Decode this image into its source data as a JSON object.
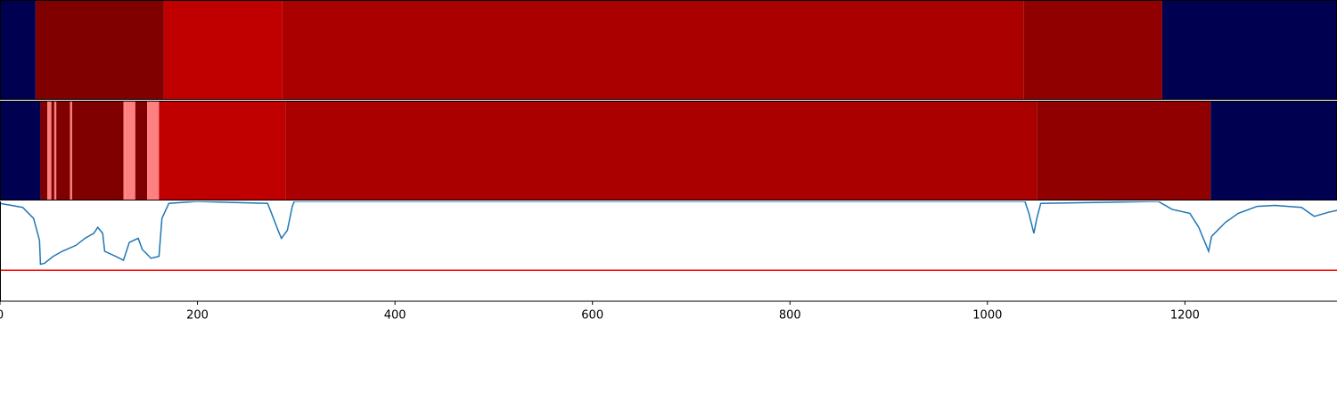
{
  "chart_data": {
    "type": "segmentation",
    "xlim": [
      0,
      1354
    ],
    "xticks": [
      0,
      200,
      400,
      600,
      800,
      1000,
      1200
    ],
    "ylim": [
      0,
      1
    ],
    "rows": [
      {
        "segments": [
          {
            "start": 0,
            "end": 36,
            "color": "#000050"
          },
          {
            "start": 36,
            "end": 166,
            "color": "#800000"
          },
          {
            "start": 166,
            "end": 286,
            "color": "#c00000"
          },
          {
            "start": 286,
            "end": 1037,
            "color": "#aa0000"
          },
          {
            "start": 1037,
            "end": 1177,
            "color": "#900000"
          },
          {
            "start": 1177,
            "end": 1354,
            "color": "#000050"
          }
        ]
      },
      {
        "segments": [
          {
            "start": 0,
            "end": 41,
            "color": "#000050"
          },
          {
            "start": 41,
            "end": 48,
            "color": "#800000"
          },
          {
            "start": 48,
            "end": 52,
            "color": "#ff8080"
          },
          {
            "start": 52,
            "end": 55,
            "color": "#800000"
          },
          {
            "start": 55,
            "end": 57,
            "color": "#ff8080"
          },
          {
            "start": 57,
            "end": 71,
            "color": "#800000"
          },
          {
            "start": 71,
            "end": 73,
            "color": "#ff8080"
          },
          {
            "start": 73,
            "end": 125,
            "color": "#800000"
          },
          {
            "start": 125,
            "end": 127,
            "color": "#ff8080"
          },
          {
            "start": 127,
            "end": 137,
            "color": "#ff8080"
          },
          {
            "start": 137,
            "end": 149,
            "color": "#800000"
          },
          {
            "start": 149,
            "end": 161,
            "color": "#ff8080"
          },
          {
            "start": 161,
            "end": 289,
            "color": "#c00000"
          },
          {
            "start": 289,
            "end": 1050,
            "color": "#aa0000"
          },
          {
            "start": 1050,
            "end": 1226,
            "color": "#900000"
          },
          {
            "start": 1226,
            "end": 1354,
            "color": "#000050"
          }
        ]
      }
    ],
    "series": [
      {
        "color": "#1f77b4",
        "x": [
          0,
          23,
          34,
          40,
          41,
          45,
          54,
          63,
          77,
          86,
          95,
          99,
          104,
          106,
          117,
          125,
          131,
          140,
          144,
          153,
          161,
          164,
          171,
          199,
          271,
          275,
          282,
          285,
          291,
          296,
          298,
          640,
          1038,
          1042,
          1047,
          1050,
          1054,
          1173,
          1187,
          1205,
          1214,
          1224,
          1227,
          1241,
          1254,
          1273,
          1291,
          1318,
          1331,
          1345,
          1354
        ],
        "values": [
          0.98,
          0.94,
          0.83,
          0.61,
          0.37,
          0.38,
          0.45,
          0.5,
          0.56,
          0.63,
          0.68,
          0.74,
          0.68,
          0.5,
          0.45,
          0.41,
          0.59,
          0.63,
          0.52,
          0.43,
          0.45,
          0.83,
          0.98,
          1.0,
          0.98,
          0.88,
          0.7,
          0.63,
          0.71,
          0.95,
          1.0,
          1.0,
          1.0,
          0.88,
          0.68,
          0.83,
          0.98,
          1.0,
          0.92,
          0.88,
          0.74,
          0.5,
          0.65,
          0.79,
          0.88,
          0.95,
          0.96,
          0.94,
          0.85,
          0.89,
          0.91
        ]
      }
    ],
    "hlines": [
      {
        "value": 0.31,
        "color": "#ff0000"
      }
    ]
  }
}
